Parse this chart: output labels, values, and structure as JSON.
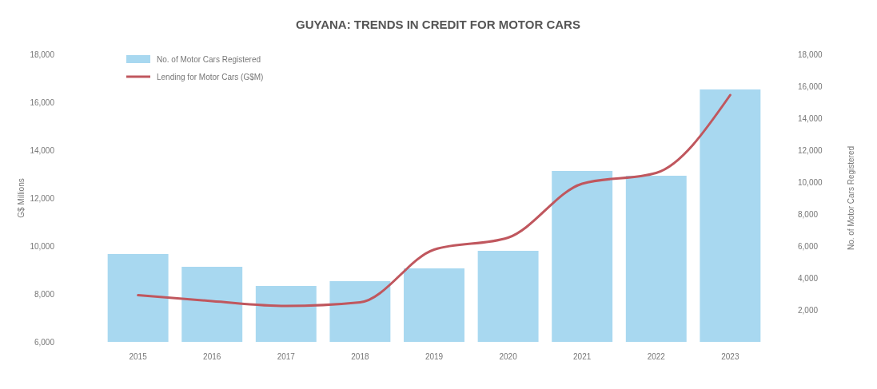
{
  "chart_data": {
    "type": "bar",
    "title": "GUYANA: TRENDS IN CREDIT FOR MOTOR CARS",
    "ylabel": "G$ Millions",
    "y2label": "No. of Motor Cars Registered",
    "categories": [
      "2015",
      "2016",
      "2017",
      "2018",
      "2019",
      "2020",
      "2021",
      "2022",
      "2023"
    ],
    "series": [
      {
        "name": "No. of Motor Cars Registered",
        "axis": "y2",
        "color": "#a8d8f0",
        "values": [
          5500,
          4700,
          3500,
          3800,
          4600,
          5700,
          10700,
          10400,
          15800
        ]
      },
      {
        "name": "Lending for Motor Cars (G$M)",
        "type": "line",
        "color": "#c0575e",
        "values": [
          7950,
          7700,
          7500,
          7650,
          9850,
          10350,
          12600,
          13050,
          16300
        ]
      }
    ],
    "ylim": [
      6000,
      18000
    ],
    "yticks": [
      {
        "value": 6000,
        "label": "6,000"
      },
      {
        "value": 8000,
        "label": "8,000"
      },
      {
        "value": 10000,
        "label": "10,000"
      },
      {
        "value": 12000,
        "label": "12,000"
      },
      {
        "value": 14000,
        "label": "14,000"
      },
      {
        "value": 16000,
        "label": "16,000"
      },
      {
        "value": 18000,
        "label": "18,000"
      }
    ],
    "y2lim": [
      0,
      18000
    ],
    "y2ticks": [
      {
        "value": 2000,
        "label": "2,000"
      },
      {
        "value": 4000,
        "label": "4,000"
      },
      {
        "value": 6000,
        "label": "6,000"
      },
      {
        "value": 8000,
        "label": "8,000"
      },
      {
        "value": 10000,
        "label": "10,000"
      },
      {
        "value": 12000,
        "label": "12,000"
      },
      {
        "value": 14000,
        "label": "14,000"
      },
      {
        "value": 16000,
        "label": "16,000"
      },
      {
        "value": 18000,
        "label": "18,000"
      }
    ],
    "legend": "top left",
    "grid": false,
    "marker": "none"
  }
}
